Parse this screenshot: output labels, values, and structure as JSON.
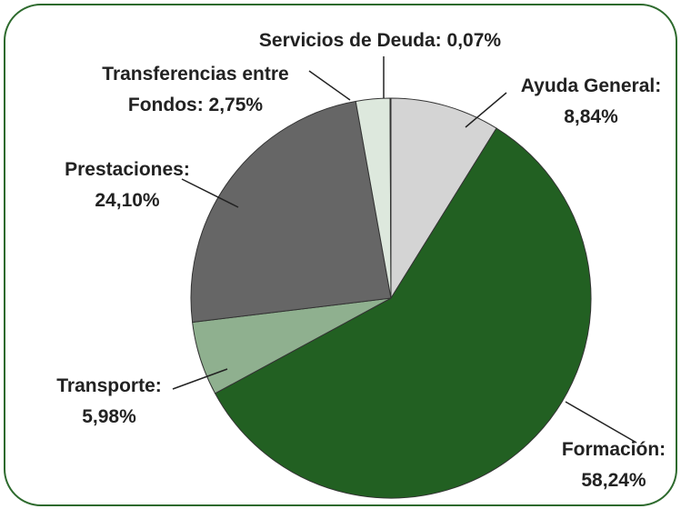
{
  "chart_data": {
    "type": "pie",
    "categories": [
      "Ayuda General:",
      "Formación:",
      "Transporte:",
      "Prestaciones:",
      "Transferencias entre Fondos:",
      "Servicios de Deuda:"
    ],
    "values": [
      8.84,
      58.24,
      5.98,
      24.1,
      2.75,
      0.07
    ],
    "value_labels": [
      "8,84%",
      "58,24%",
      "5,98%",
      "24,10%",
      "2,75%",
      "0,07%"
    ],
    "colors": [
      "#d4d4d4",
      "#226022",
      "#8fb08f",
      "#666666",
      "#dde8dd",
      "#111111"
    ]
  }
}
